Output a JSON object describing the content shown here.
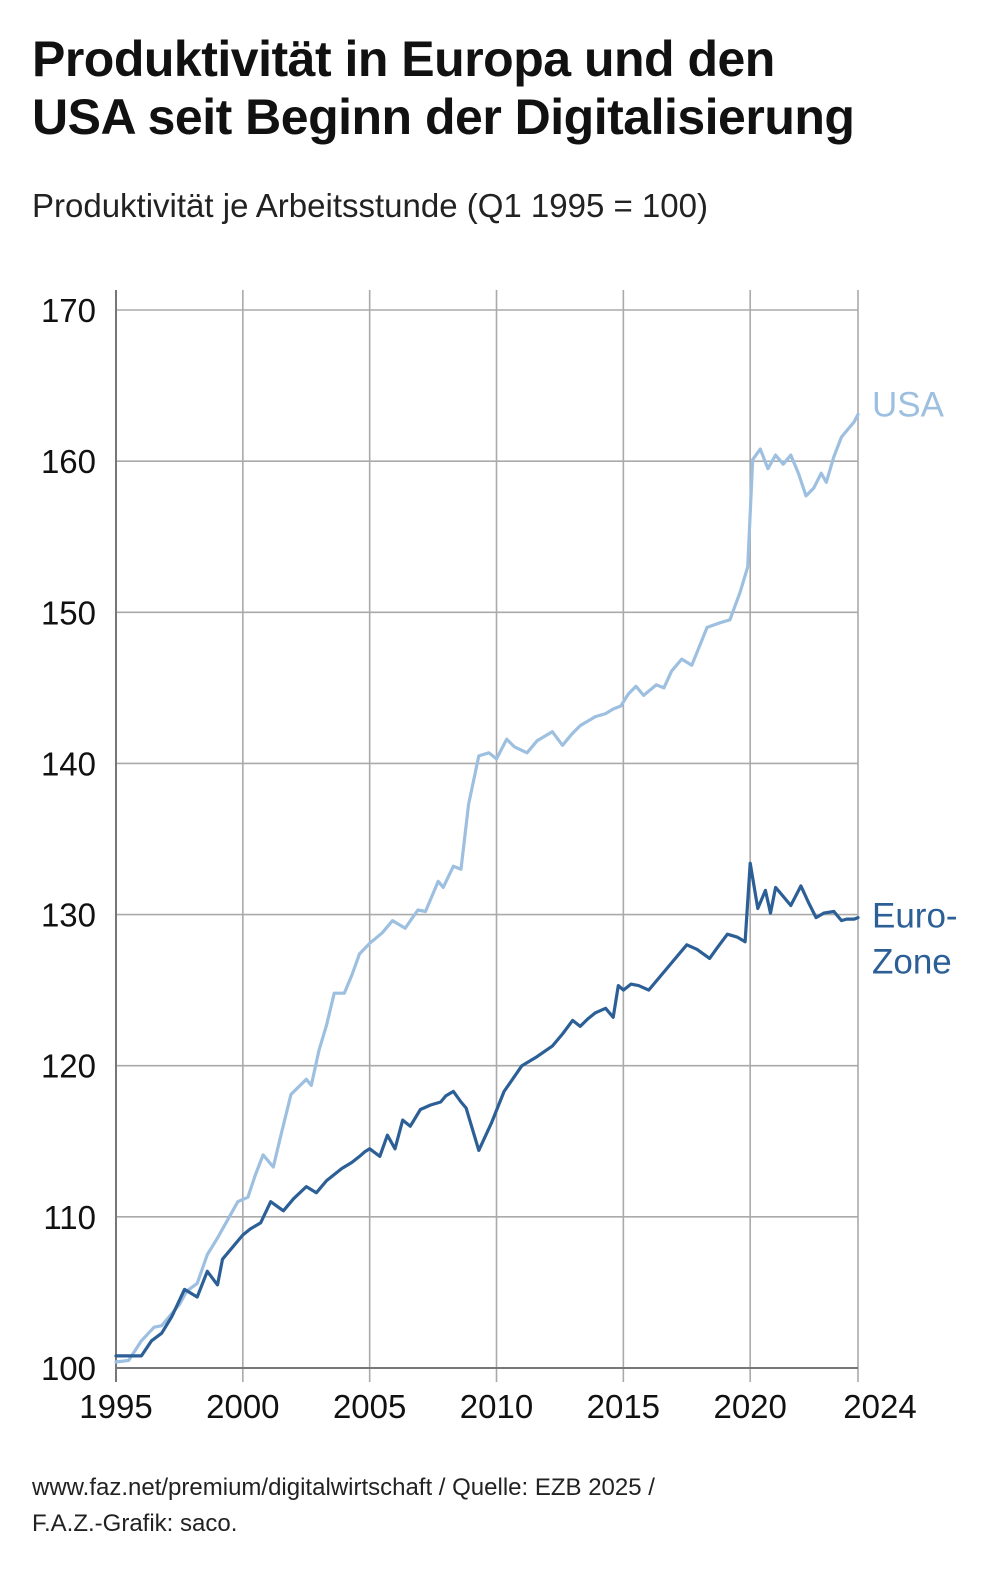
{
  "title_line1": "Produktivität in Europa und den",
  "title_line2": "USA seit Beginn der Digitalisierung",
  "subtitle": "Produktivität je Arbeitsstunde (Q1 1995 = 100)",
  "footer_line1": "www.faz.net/premium/digitalwirtschaft / Quelle: EZB 2025 /",
  "footer_line2": "F.A.Z.-Grafik: saco.",
  "colors": {
    "usa": "#9dbfe0",
    "euro": "#2b5f96",
    "grid": "#aaaaaa",
    "axis": "#777777"
  },
  "chart_data": {
    "type": "line",
    "title": "Produktivität in Europa und den USA seit Beginn der Digitalisierung",
    "subtitle": "Produktivität je Arbeitsstunde (Q1 1995 = 100)",
    "xlabel": "",
    "ylabel": "",
    "xlim": [
      1995,
      2024.25
    ],
    "ylim": [
      100,
      170
    ],
    "grid": true,
    "y_ticks": [
      100,
      110,
      120,
      130,
      140,
      150,
      160,
      170
    ],
    "y_tick_labels": [
      "100",
      "110",
      "120",
      "130",
      "140",
      "150",
      "160",
      "170"
    ],
    "x_ticks": [
      1995,
      2000,
      2005,
      2010,
      2015,
      2020,
      2024.25
    ],
    "x_tick_labels": [
      "1995",
      "2000",
      "2005",
      "2010",
      "2015",
      "2020",
      "2024"
    ],
    "series": [
      {
        "name": "USA",
        "label_lines": [
          "USA"
        ],
        "color": "#9dbfe0",
        "x": [
          1995.0,
          1995.5,
          1996.0,
          1996.5,
          1996.8,
          1997.5,
          1997.8,
          1998.2,
          1998.6,
          1999.0,
          1999.5,
          1999.8,
          2000.2,
          2000.5,
          2000.8,
          2001.2,
          2001.5,
          2001.9,
          2002.5,
          2002.7,
          2003.0,
          2003.3,
          2003.6,
          2004.0,
          2004.3,
          2004.6,
          2005.0,
          2005.5,
          2005.9,
          2006.4,
          2006.9,
          2007.2,
          2007.7,
          2007.9,
          2008.3,
          2008.6,
          2008.9,
          2009.3,
          2009.7,
          2010.0,
          2010.4,
          2010.7,
          2011.2,
          2011.6,
          2012.2,
          2012.6,
          2013.0,
          2013.3,
          2013.6,
          2013.9,
          2014.3,
          2014.6,
          2014.9,
          2015.2,
          2015.5,
          2015.8,
          2016.3,
          2016.6,
          2016.9,
          2017.3,
          2017.7,
          2018.3,
          2018.8,
          2019.2,
          2019.6,
          2019.9,
          2020.1,
          2020.4,
          2020.7,
          2021.0,
          2021.3,
          2021.6,
          2021.9,
          2022.2,
          2022.5,
          2022.8,
          2023.0,
          2023.3,
          2023.6,
          2023.9,
          2024.1,
          2024.25
        ],
        "values": [
          100.4,
          100.5,
          101.8,
          102.7,
          102.8,
          104.2,
          105.1,
          105.6,
          107.5,
          108.6,
          110.1,
          111.0,
          111.3,
          112.8,
          114.1,
          113.3,
          115.4,
          118.1,
          119.1,
          118.7,
          121.0,
          122.7,
          124.8,
          124.8,
          126.0,
          127.4,
          128.1,
          128.8,
          129.6,
          129.1,
          130.3,
          130.2,
          132.2,
          131.8,
          133.2,
          133.0,
          137.3,
          140.5,
          140.7,
          140.3,
          141.6,
          141.1,
          140.7,
          141.5,
          142.1,
          141.2,
          142.0,
          142.5,
          142.8,
          143.1,
          143.3,
          143.6,
          143.8,
          144.6,
          145.1,
          144.5,
          145.2,
          145.0,
          146.1,
          146.9,
          146.5,
          149.0,
          149.3,
          149.5,
          151.3,
          153.0,
          160.1,
          160.8,
          159.5,
          160.4,
          159.8,
          160.4,
          159.2,
          157.7,
          158.2,
          159.2,
          158.6,
          160.3,
          161.6,
          162.2,
          162.6,
          163.1
        ]
      },
      {
        "name": "Euro-Zone",
        "label_lines": [
          "Euro-",
          "Zone"
        ],
        "color": "#2b5f96",
        "x": [
          1995.0,
          1995.7,
          1996.0,
          1996.4,
          1996.8,
          1997.2,
          1997.7,
          1998.2,
          1998.6,
          1999.0,
          1999.2,
          2000.0,
          2000.3,
          2000.7,
          2001.1,
          2001.6,
          2002.0,
          2002.5,
          2002.9,
          2003.3,
          2003.9,
          2004.3,
          2004.6,
          2004.8,
          2005.0,
          2005.4,
          2005.7,
          2006.0,
          2006.3,
          2006.6,
          2007.0,
          2007.4,
          2007.8,
          2008.0,
          2008.3,
          2008.6,
          2008.8,
          2009.3,
          2009.8,
          2010.3,
          2011.0,
          2011.6,
          2012.2,
          2012.6,
          2013.0,
          2013.3,
          2013.6,
          2013.9,
          2014.3,
          2014.6,
          2014.8,
          2015.0,
          2015.3,
          2015.6,
          2016.0,
          2016.5,
          2017.0,
          2017.5,
          2017.9,
          2018.4,
          2018.7,
          2019.1,
          2019.5,
          2019.8,
          2020.0,
          2020.3,
          2020.6,
          2020.8,
          2021.0,
          2021.3,
          2021.6,
          2022.0,
          2022.3,
          2022.6,
          2022.9,
          2023.3,
          2023.6,
          2023.8,
          2024.1,
          2024.25
        ],
        "values": [
          100.8,
          100.8,
          100.8,
          101.8,
          102.3,
          103.4,
          105.2,
          104.7,
          106.4,
          105.5,
          107.2,
          108.8,
          109.2,
          109.6,
          111.0,
          110.4,
          111.2,
          112.0,
          111.6,
          112.4,
          113.2,
          113.6,
          114.0,
          114.3,
          114.5,
          114.0,
          115.4,
          114.5,
          116.4,
          116.0,
          117.1,
          117.4,
          117.6,
          118.0,
          118.3,
          117.6,
          117.2,
          114.4,
          116.2,
          118.3,
          120.0,
          120.6,
          121.3,
          122.1,
          123.0,
          122.6,
          123.1,
          123.5,
          123.8,
          123.2,
          125.3,
          125.0,
          125.4,
          125.3,
          125.0,
          126.0,
          127.0,
          128.0,
          127.7,
          127.1,
          127.8,
          128.7,
          128.5,
          128.2,
          133.4,
          130.4,
          131.6,
          130.1,
          131.8,
          131.2,
          130.6,
          131.9,
          130.8,
          129.8,
          130.1,
          130.2,
          129.6,
          129.7,
          129.7,
          129.8
        ]
      }
    ]
  }
}
